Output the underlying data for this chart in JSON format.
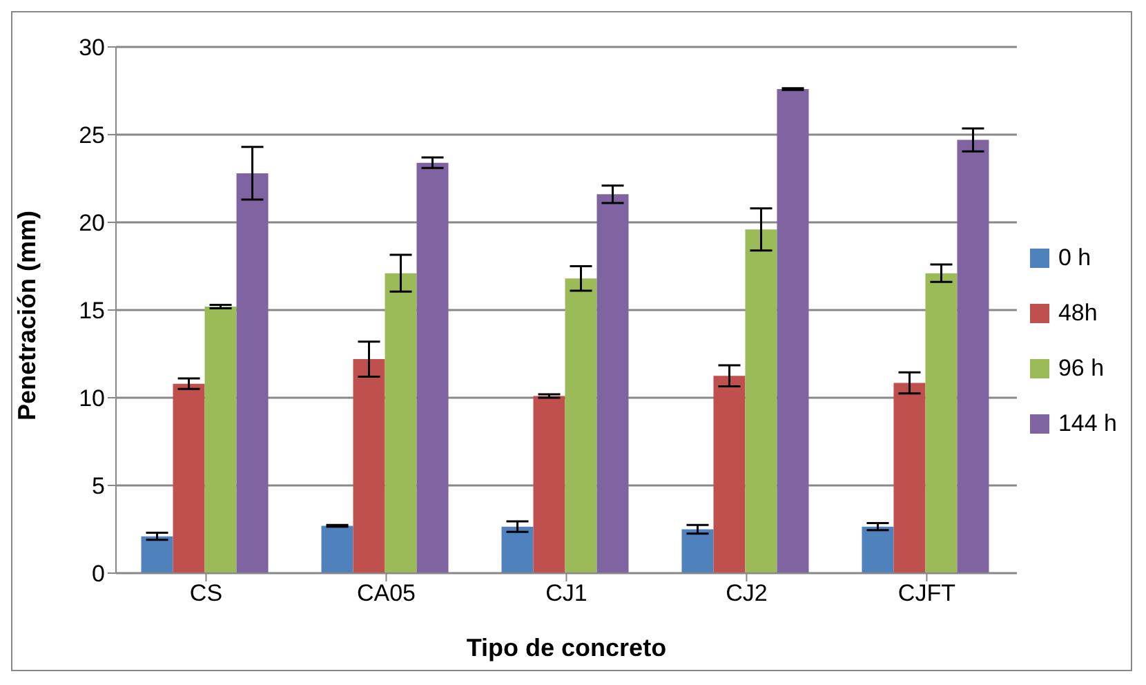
{
  "chart_data": {
    "type": "bar",
    "xlabel": "Tipo de concreto",
    "ylabel": "Penetración (mm)",
    "categories": [
      "CS",
      "CA05",
      "CJ1",
      "CJ2",
      "CJFT"
    ],
    "series": [
      {
        "name": "0 h",
        "color": "#4f81bd",
        "values": [
          2.1,
          2.7,
          2.65,
          2.5,
          2.65
        ],
        "errors": [
          0.2,
          0.05,
          0.3,
          0.25,
          0.2
        ]
      },
      {
        "name": "48h",
        "color": "#c0504d",
        "values": [
          10.8,
          12.2,
          10.1,
          11.25,
          10.85
        ],
        "errors": [
          0.3,
          1.0,
          0.1,
          0.6,
          0.6
        ]
      },
      {
        "name": "96 h",
        "color": "#9bbb59",
        "values": [
          15.2,
          17.1,
          16.8,
          19.6,
          17.1
        ],
        "errors": [
          0.1,
          1.05,
          0.7,
          1.2,
          0.5
        ]
      },
      {
        "name": "144 h",
        "color": "#8064a2",
        "values": [
          22.8,
          23.4,
          21.6,
          27.6,
          24.7
        ],
        "errors": [
          1.5,
          0.3,
          0.5,
          0.05,
          0.65
        ]
      }
    ],
    "ylim": [
      0,
      30
    ],
    "yticks": [
      0,
      5,
      10,
      15,
      20,
      25,
      30
    ],
    "grid": "y",
    "legend": "right"
  }
}
